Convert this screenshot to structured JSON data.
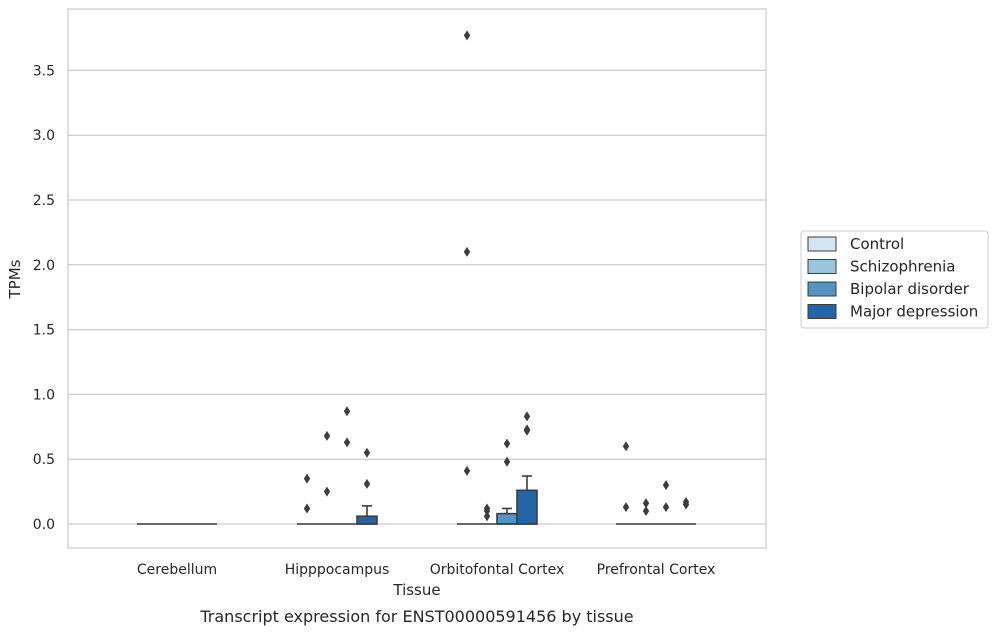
{
  "chart_data": {
    "type": "box",
    "xlabel": "Tissue",
    "ylabel": "TPMs",
    "caption": "Transcript expression for ENST00000591456 by tissue",
    "ylim": [
      -0.18,
      3.97
    ],
    "yticks": [
      "0.0",
      "0.5",
      "1.0",
      "1.5",
      "2.0",
      "2.5",
      "3.0",
      "3.5"
    ],
    "grid": "horizontal",
    "legend_placement": "right",
    "categories": [
      "Cerebellum",
      "Hipppocampus",
      "Orbitofontal Cortex",
      "Prefrontal Cortex"
    ],
    "series": [
      {
        "name": "Control",
        "color": "#d4e4f3"
      },
      {
        "name": "Schizophrenia",
        "color": "#9bc4de"
      },
      {
        "name": "Bipolar disorder",
        "color": "#5394c4"
      },
      {
        "name": "Major depression",
        "color": "#2466a5"
      }
    ],
    "boxes": [
      {
        "category": 0,
        "series": 0,
        "q1": 0,
        "median": 0,
        "q3": 0,
        "whisker_high": 0,
        "outliers": []
      },
      {
        "category": 0,
        "series": 1,
        "q1": 0,
        "median": 0,
        "q3": 0,
        "whisker_high": 0,
        "outliers": []
      },
      {
        "category": 0,
        "series": 2,
        "q1": 0,
        "median": 0,
        "q3": 0,
        "whisker_high": 0,
        "outliers": []
      },
      {
        "category": 0,
        "series": 3,
        "q1": 0,
        "median": 0,
        "q3": 0,
        "whisker_high": 0,
        "outliers": []
      },
      {
        "category": 1,
        "series": 0,
        "q1": 0,
        "median": 0,
        "q3": 0,
        "whisker_high": 0,
        "outliers": [
          0.35,
          0.12
        ]
      },
      {
        "category": 1,
        "series": 1,
        "q1": 0,
        "median": 0,
        "q3": 0,
        "whisker_high": 0,
        "outliers": [
          0.68,
          0.25
        ]
      },
      {
        "category": 1,
        "series": 2,
        "q1": 0,
        "median": 0,
        "q3": 0,
        "whisker_high": 0,
        "outliers": [
          0.87,
          0.63
        ]
      },
      {
        "category": 1,
        "series": 3,
        "q1": 0,
        "median": 0,
        "q3": 0.06,
        "whisker_high": 0.14,
        "outliers": [
          0.55,
          0.31
        ]
      },
      {
        "category": 2,
        "series": 0,
        "q1": 0,
        "median": 0,
        "q3": 0,
        "whisker_high": 0,
        "outliers": [
          3.77,
          2.1,
          0.41
        ]
      },
      {
        "category": 2,
        "series": 1,
        "q1": 0,
        "median": 0,
        "q3": 0,
        "whisker_high": 0,
        "outliers": [
          0.12,
          0.1,
          0.06
        ]
      },
      {
        "category": 2,
        "series": 2,
        "q1": 0,
        "median": 0,
        "q3": 0.08,
        "whisker_high": 0.12,
        "outliers": [
          0.62,
          0.48
        ]
      },
      {
        "category": 2,
        "series": 3,
        "q1": 0,
        "median": 0,
        "q3": 0.26,
        "whisker_high": 0.37,
        "outliers": [
          0.83,
          0.73,
          0.72
        ]
      },
      {
        "category": 3,
        "series": 0,
        "q1": 0,
        "median": 0,
        "q3": 0,
        "whisker_high": 0,
        "outliers": [
          0.6,
          0.13
        ]
      },
      {
        "category": 3,
        "series": 1,
        "q1": 0,
        "median": 0,
        "q3": 0,
        "whisker_high": 0,
        "outliers": [
          0.16,
          0.1
        ]
      },
      {
        "category": 3,
        "series": 2,
        "q1": 0,
        "median": 0,
        "q3": 0,
        "whisker_high": 0,
        "outliers": [
          0.3,
          0.13
        ]
      },
      {
        "category": 3,
        "series": 3,
        "q1": 0,
        "median": 0,
        "q3": 0,
        "whisker_high": 0,
        "outliers": [
          0.17,
          0.15
        ]
      }
    ]
  }
}
